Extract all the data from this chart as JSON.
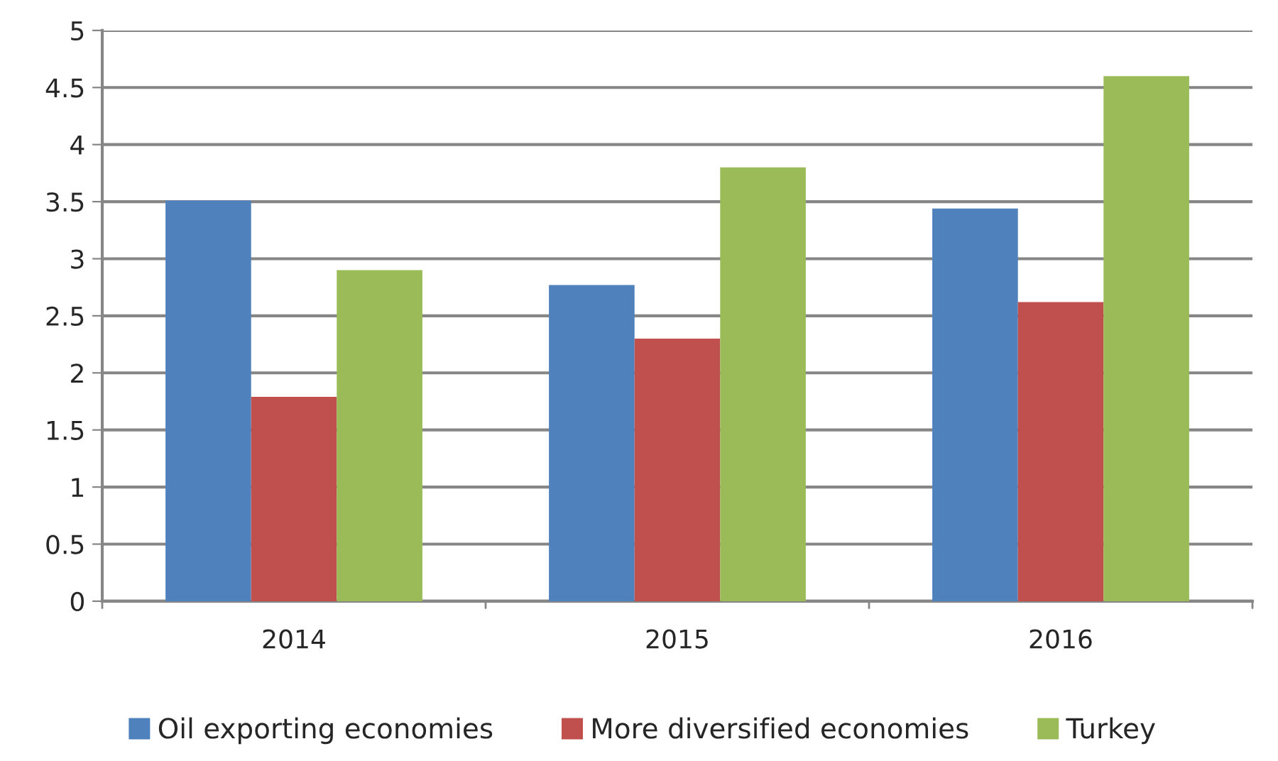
{
  "chart_data": {
    "type": "bar",
    "categories": [
      "2014",
      "2015",
      "2016"
    ],
    "series": [
      {
        "name": "Oil exporting economies",
        "color": "#4f81bd",
        "values": [
          3.51,
          2.77,
          3.44
        ]
      },
      {
        "name": "More diversified economies",
        "color": "#c0504d",
        "values": [
          1.79,
          2.3,
          2.62
        ]
      },
      {
        "name": "Turkey",
        "color": "#9bbb59",
        "values": [
          2.9,
          3.8,
          4.6
        ]
      }
    ],
    "ylim": [
      0,
      5
    ],
    "yticks": [
      0,
      0.5,
      1,
      1.5,
      2,
      2.5,
      3,
      3.5,
      4,
      4.5,
      5
    ],
    "grid": "y",
    "legend": "bottom"
  }
}
